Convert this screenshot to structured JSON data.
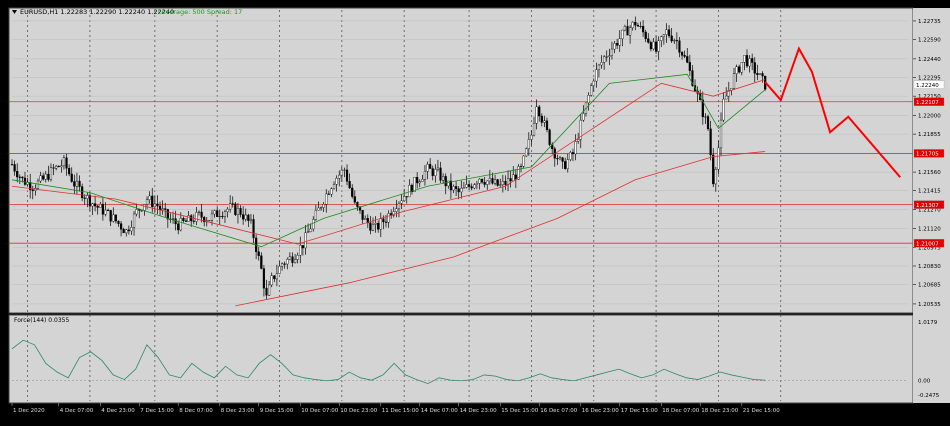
{
  "header": {
    "symbol_line": "EURUSD,H1  1.22283 1.22290 1.22240 1.22240",
    "info_line": "Leverage: 500 Spread: 17"
  },
  "chart_data": {
    "type": "candlestick",
    "symbol": "EURUSD",
    "timeframe": "H1",
    "ohlc_last": {
      "open": 1.22283,
      "high": 1.2229,
      "low": 1.2224,
      "close": 1.2224
    },
    "price_axis": {
      "ylim": [
        1.2048,
        1.2282
      ],
      "ticks": [
        {
          "value": 1.22735,
          "label": "1.22735"
        },
        {
          "value": 1.2259,
          "label": "1.22590"
        },
        {
          "value": 1.2244,
          "label": "1.22440"
        },
        {
          "value": 1.22295,
          "label": "1.22295"
        },
        {
          "value": 1.2215,
          "label": "1.22150"
        },
        {
          "value": 1.22,
          "label": "1.22000"
        },
        {
          "value": 1.21855,
          "label": "1.21855"
        },
        {
          "value": 1.2156,
          "label": "1.21560"
        },
        {
          "value": 1.21415,
          "label": "1.21415"
        },
        {
          "value": 1.2127,
          "label": "1.21270"
        },
        {
          "value": 1.2112,
          "label": "1.21120"
        },
        {
          "value": 1.20975,
          "label": "1.20975"
        },
        {
          "value": 1.2083,
          "label": "1.20830"
        },
        {
          "value": 1.20685,
          "label": "1.20685"
        },
        {
          "value": 1.20535,
          "label": "1.20535"
        }
      ]
    },
    "price_tags": [
      {
        "value": 1.2224,
        "label": "1.22240",
        "color": "#ffffff",
        "text_color": "#000000"
      },
      {
        "value": 1.22107,
        "label": "1.22107",
        "color": "#e00000",
        "text_color": "#ffffff"
      },
      {
        "value": 1.21705,
        "label": "1.21705",
        "color": "#e00000",
        "text_color": "#ffffff"
      },
      {
        "value": 1.21307,
        "label": "1.21307",
        "color": "#e00000",
        "text_color": "#ffffff"
      },
      {
        "value": 1.21007,
        "label": "1.21007",
        "color": "#e00000",
        "text_color": "#ffffff"
      }
    ],
    "horizontal_levels": [
      1.22107,
      1.21705,
      1.21307,
      1.21007
    ],
    "time_axis": {
      "count": 230,
      "labels": [
        {
          "idx": 0,
          "label": "1 Dec 2020"
        },
        {
          "idx": 18,
          "label": "4 Dec 07:00"
        },
        {
          "idx": 34,
          "label": "4 Dec 23:00"
        },
        {
          "idx": 49,
          "label": "7 Dec 15:00"
        },
        {
          "idx": 64,
          "label": "8 Dec 07:00"
        },
        {
          "idx": 80,
          "label": "8 Dec 23:00"
        },
        {
          "idx": 95,
          "label": "9 Dec 15:00"
        },
        {
          "idx": 111,
          "label": "10 Dec 07:00"
        },
        {
          "idx": 126,
          "label": "10 Dec 23:00"
        },
        {
          "idx": 142,
          "label": "11 Dec 15:00"
        },
        {
          "idx": 157,
          "label": "14 Dec 07:00"
        },
        {
          "idx": 172,
          "label": "14 Dec 23:00"
        },
        {
          "idx": 188,
          "label": "15 Dec 15:00"
        },
        {
          "idx": 203,
          "label": "16 Dec 07:00"
        },
        {
          "idx": 219,
          "label": "16 Dec 23:00"
        },
        {
          "idx": 234,
          "label": "17 Dec 15:00"
        },
        {
          "idx": 250,
          "label": "18 Dec 07:00"
        },
        {
          "idx": 265,
          "label": "18 Dec 23:00"
        },
        {
          "idx": 281,
          "label": "21 Dec 15:00"
        }
      ],
      "day_separators": [
        6,
        30,
        55,
        79,
        103,
        127,
        151,
        176,
        200,
        224,
        248,
        272,
        296
      ]
    },
    "price_path": [
      [
        0,
        1.2162
      ],
      [
        4,
        1.215
      ],
      [
        8,
        1.2145
      ],
      [
        12,
        1.215
      ],
      [
        16,
        1.2158
      ],
      [
        20,
        1.2163
      ],
      [
        24,
        1.2147
      ],
      [
        28,
        1.2138
      ],
      [
        32,
        1.213
      ],
      [
        36,
        1.2125
      ],
      [
        40,
        1.2118
      ],
      [
        44,
        1.211
      ],
      [
        48,
        1.2125
      ],
      [
        52,
        1.2135
      ],
      [
        56,
        1.213
      ],
      [
        60,
        1.212
      ],
      [
        64,
        1.2115
      ],
      [
        68,
        1.2118
      ],
      [
        72,
        1.2122
      ],
      [
        76,
        1.212
      ],
      [
        80,
        1.2125
      ],
      [
        84,
        1.2128
      ],
      [
        88,
        1.2125
      ],
      [
        92,
        1.2115
      ],
      [
        96,
        1.208
      ],
      [
        98,
        1.2058
      ],
      [
        100,
        1.2072
      ],
      [
        104,
        1.2085
      ],
      [
        108,
        1.209
      ],
      [
        112,
        1.21
      ],
      [
        116,
        1.2118
      ],
      [
        120,
        1.2135
      ],
      [
        124,
        1.215
      ],
      [
        128,
        1.2158
      ],
      [
        132,
        1.213
      ],
      [
        136,
        1.2118
      ],
      [
        140,
        1.2112
      ],
      [
        144,
        1.212
      ],
      [
        148,
        1.2132
      ],
      [
        152,
        1.214
      ],
      [
        156,
        1.215
      ],
      [
        160,
        1.2158
      ],
      [
        164,
        1.2155
      ],
      [
        168,
        1.2145
      ],
      [
        172,
        1.214
      ],
      [
        176,
        1.2145
      ],
      [
        180,
        1.2152
      ],
      [
        184,
        1.2148
      ],
      [
        188,
        1.2145
      ],
      [
        192,
        1.215
      ],
      [
        196,
        1.2158
      ],
      [
        200,
        1.2185
      ],
      [
        202,
        1.221
      ],
      [
        204,
        1.2198
      ],
      [
        208,
        1.2175
      ],
      [
        212,
        1.216
      ],
      [
        216,
        1.217
      ],
      [
        220,
        1.22
      ],
      [
        224,
        1.223
      ],
      [
        228,
        1.2245
      ],
      [
        232,
        1.2255
      ],
      [
        236,
        1.2265
      ],
      [
        240,
        1.2272
      ],
      [
        244,
        1.2262
      ],
      [
        248,
        1.225
      ],
      [
        252,
        1.2265
      ],
      [
        256,
        1.2258
      ],
      [
        260,
        1.224
      ],
      [
        264,
        1.2215
      ],
      [
        268,
        1.219
      ],
      [
        270,
        1.215
      ],
      [
        272,
        1.2175
      ],
      [
        274,
        1.221
      ],
      [
        278,
        1.223
      ],
      [
        282,
        1.2245
      ],
      [
        286,
        1.2235
      ],
      [
        290,
        1.2224
      ]
    ],
    "moving_averages": [
      {
        "color": "#1a8a1a",
        "points": [
          [
            0,
            1.215
          ],
          [
            30,
            1.214
          ],
          [
            60,
            1.212
          ],
          [
            96,
            1.2098
          ],
          [
            120,
            1.212
          ],
          [
            160,
            1.2145
          ],
          [
            200,
            1.216
          ],
          [
            230,
            1.2225
          ],
          [
            260,
            1.2232
          ],
          [
            272,
            1.219
          ],
          [
            290,
            1.222
          ]
        ]
      },
      {
        "color": "#e03030",
        "points": [
          [
            0,
            1.2145
          ],
          [
            40,
            1.2135
          ],
          [
            80,
            1.2115
          ],
          [
            110,
            1.21
          ],
          [
            150,
            1.2125
          ],
          [
            190,
            1.2145
          ],
          [
            220,
            1.2185
          ],
          [
            250,
            1.2225
          ],
          [
            270,
            1.2215
          ],
          [
            290,
            1.2228
          ]
        ]
      },
      {
        "color": "#e03030",
        "points": [
          [
            86,
            1.2052
          ],
          [
            130,
            1.207
          ],
          [
            170,
            1.209
          ],
          [
            210,
            1.212
          ],
          [
            240,
            1.215
          ],
          [
            270,
            1.2168
          ],
          [
            290,
            1.2172
          ]
        ]
      }
    ],
    "forecast_path": [
      {
        "x": 290,
        "y": 1.2226
      },
      {
        "x": 296,
        "y": 1.2212
      },
      {
        "x": 303,
        "y": 1.2252
      },
      {
        "x": 308,
        "y": 1.2234
      },
      {
        "x": 315,
        "y": 1.2187
      },
      {
        "x": 322,
        "y": 1.2199
      },
      {
        "x": 342,
        "y": 1.2152
      }
    ],
    "sub_indicator": {
      "label": "Force(144) 0.0355",
      "ticks": [
        {
          "value": 1.0179,
          "label": "1.0179"
        },
        {
          "value": 0.0,
          "label": "0.00"
        },
        {
          "value": -0.2475,
          "label": "-0.2475"
        }
      ],
      "ylim": [
        -0.35,
        1.1
      ],
      "values": [
        0.55,
        0.7,
        0.62,
        0.3,
        0.15,
        0.05,
        0.4,
        0.5,
        0.35,
        0.1,
        0.02,
        0.2,
        0.62,
        0.4,
        0.1,
        0.05,
        0.3,
        0.15,
        0.05,
        0.25,
        0.1,
        0.05,
        0.3,
        0.45,
        0.3,
        0.1,
        0.05,
        0.02,
        0.0,
        0.02,
        0.15,
        0.05,
        0.01,
        0.1,
        0.3,
        0.1,
        0.02,
        -0.05,
        0.05,
        0.01,
        0.0,
        0.02,
        0.1,
        0.08,
        0.02,
        0.0,
        0.05,
        0.12,
        0.05,
        0.02,
        0.0,
        0.05,
        0.1,
        0.15,
        0.2,
        0.12,
        0.05,
        0.1,
        0.2,
        0.12,
        0.05,
        0.02,
        0.08,
        0.15,
        0.1,
        0.06,
        0.02,
        0.01
      ]
    },
    "grid": true
  }
}
